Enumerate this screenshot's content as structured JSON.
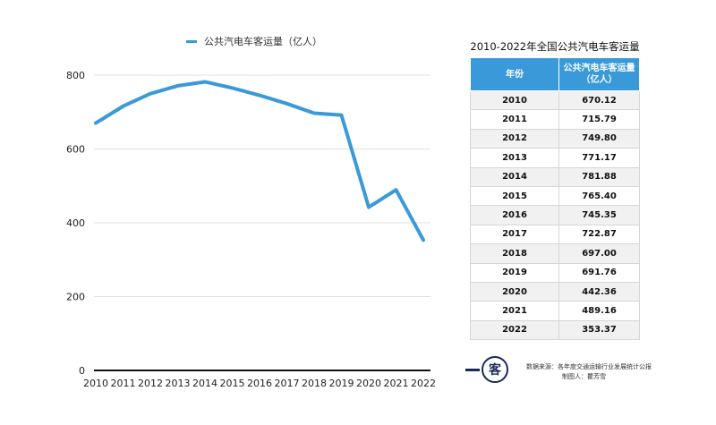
{
  "chart_data": {
    "type": "line",
    "x": [
      "2010",
      "2011",
      "2012",
      "2013",
      "2014",
      "2015",
      "2016",
      "2017",
      "2018",
      "2019",
      "2020",
      "2021",
      "2022"
    ],
    "series": [
      {
        "name": "公共汽电车客运量（亿人）",
        "values": [
          670.12,
          715.79,
          749.8,
          771.17,
          781.88,
          765.4,
          745.35,
          722.87,
          697.0,
          691.76,
          442.36,
          489.16,
          353.37
        ]
      }
    ],
    "ylim": [
      0,
      800
    ],
    "yticks": [
      0,
      200,
      400,
      600,
      800
    ],
    "grid": true,
    "legend_position": "top",
    "color": "#3a9ad9"
  },
  "table": {
    "title": "2010-2022年全国公共汽电车客运量",
    "header_year": "年份",
    "header_value_line1": "公共汽电车客运量",
    "header_value_line2": "（亿人）",
    "rows": [
      {
        "year": "2010",
        "value": "670.12"
      },
      {
        "year": "2011",
        "value": "715.79"
      },
      {
        "year": "2012",
        "value": "749.80"
      },
      {
        "year": "2013",
        "value": "771.17"
      },
      {
        "year": "2014",
        "value": "781.88"
      },
      {
        "year": "2015",
        "value": "765.40"
      },
      {
        "year": "2016",
        "value": "745.35"
      },
      {
        "year": "2017",
        "value": "722.87"
      },
      {
        "year": "2018",
        "value": "697.00"
      },
      {
        "year": "2019",
        "value": "691.76"
      },
      {
        "year": "2020",
        "value": "442.36"
      },
      {
        "year": "2021",
        "value": "489.16"
      },
      {
        "year": "2022",
        "value": "353.37"
      }
    ]
  },
  "footer": {
    "logo_char": "客",
    "source_text": "数据来源：各年度交通运输行业发展统计公报",
    "maker_text": "制图人：瞿芳雪"
  }
}
